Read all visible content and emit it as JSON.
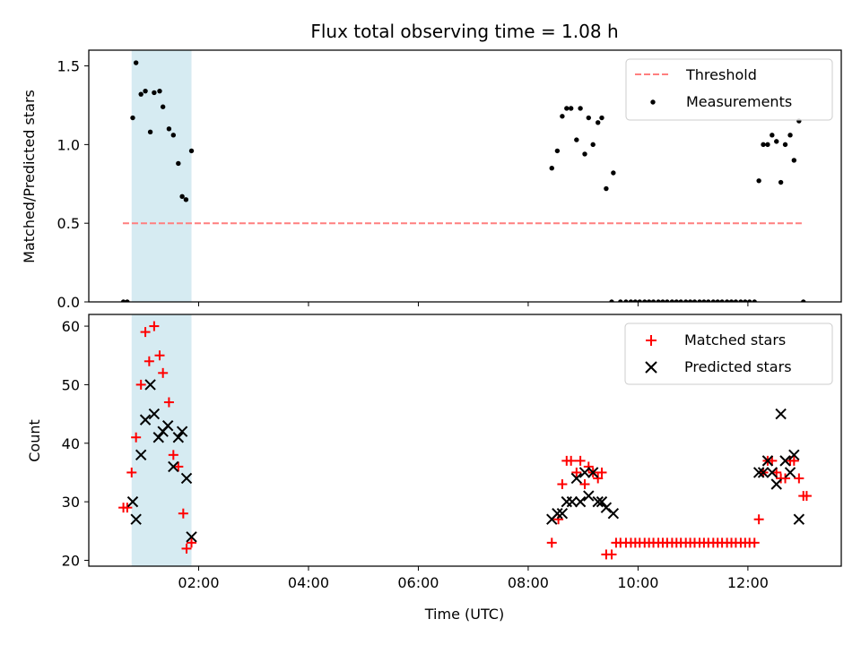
{
  "title": "Flux total observing time = 1.08 h",
  "colors": {
    "threshold": "#ff7f7f",
    "measurement": "#000000",
    "matched": "#ff0000",
    "predicted": "#000000",
    "span": "#add8e6"
  },
  "chart_data": [
    {
      "type": "scatter",
      "panel": "top",
      "ylabel": "Matched/Predicted stars",
      "xlim": [
        0.0,
        13.7
      ],
      "ylim": [
        0.0,
        1.6
      ],
      "yticks": [
        0.0,
        0.5,
        1.0,
        1.5
      ],
      "ytick_labels": [
        "0.0",
        "0.5",
        "1.0",
        "1.5"
      ],
      "xticks": [
        2,
        4,
        6,
        8,
        10,
        12
      ],
      "grid": false,
      "legend_position": "top-right",
      "shaded_span": [
        0.78,
        1.87
      ],
      "threshold": {
        "name": "Threshold",
        "y": 0.5,
        "x_range": [
          0.62,
          12.98
        ],
        "style": "dashed"
      },
      "series": [
        {
          "name": "Measurements",
          "points": [
            [
              0.63,
              0.0
            ],
            [
              0.7,
              0.0
            ],
            [
              0.8,
              1.17
            ],
            [
              0.86,
              1.52
            ],
            [
              0.95,
              1.32
            ],
            [
              1.03,
              1.34
            ],
            [
              1.12,
              1.08
            ],
            [
              1.19,
              1.33
            ],
            [
              1.29,
              1.34
            ],
            [
              1.35,
              1.24
            ],
            [
              1.46,
              1.1
            ],
            [
              1.54,
              1.06
            ],
            [
              1.63,
              0.88
            ],
            [
              1.7,
              0.67
            ],
            [
              1.77,
              0.65
            ],
            [
              1.87,
              0.96
            ],
            [
              8.43,
              0.85
            ],
            [
              8.53,
              0.96
            ],
            [
              8.62,
              1.18
            ],
            [
              8.7,
              1.23
            ],
            [
              8.78,
              1.23
            ],
            [
              8.88,
              1.03
            ],
            [
              8.95,
              1.23
            ],
            [
              9.03,
              0.94
            ],
            [
              9.1,
              1.17
            ],
            [
              9.18,
              1.0
            ],
            [
              9.27,
              1.14
            ],
            [
              9.34,
              1.17
            ],
            [
              9.42,
              0.72
            ],
            [
              9.55,
              0.82
            ],
            [
              9.52,
              0.0
            ],
            [
              9.68,
              0.0
            ],
            [
              9.78,
              0.0
            ],
            [
              9.87,
              0.0
            ],
            [
              9.95,
              0.0
            ],
            [
              10.03,
              0.0
            ],
            [
              10.12,
              0.0
            ],
            [
              10.2,
              0.0
            ],
            [
              10.28,
              0.0
            ],
            [
              10.37,
              0.0
            ],
            [
              10.45,
              0.0
            ],
            [
              10.53,
              0.0
            ],
            [
              10.62,
              0.0
            ],
            [
              10.7,
              0.0
            ],
            [
              10.78,
              0.0
            ],
            [
              10.87,
              0.0
            ],
            [
              10.95,
              0.0
            ],
            [
              11.03,
              0.0
            ],
            [
              11.12,
              0.0
            ],
            [
              11.2,
              0.0
            ],
            [
              11.28,
              0.0
            ],
            [
              11.37,
              0.0
            ],
            [
              11.45,
              0.0
            ],
            [
              11.53,
              0.0
            ],
            [
              11.62,
              0.0
            ],
            [
              11.7,
              0.0
            ],
            [
              11.78,
              0.0
            ],
            [
              11.87,
              0.0
            ],
            [
              11.95,
              0.0
            ],
            [
              12.03,
              0.0
            ],
            [
              12.12,
              0.0
            ],
            [
              12.2,
              0.77
            ],
            [
              12.28,
              1.0
            ],
            [
              12.36,
              1.0
            ],
            [
              12.44,
              1.06
            ],
            [
              12.52,
              1.02
            ],
            [
              12.6,
              0.76
            ],
            [
              12.68,
              1.0
            ],
            [
              12.77,
              1.06
            ],
            [
              12.84,
              0.9
            ],
            [
              12.93,
              1.15
            ],
            [
              13.01,
              0.0
            ]
          ]
        }
      ]
    },
    {
      "type": "scatter",
      "panel": "bottom",
      "xlabel": "Time (UTC)",
      "ylabel": "Count",
      "xlim": [
        0.0,
        13.7
      ],
      "ylim": [
        19.0,
        62.0
      ],
      "yticks": [
        20,
        30,
        40,
        50,
        60
      ],
      "ytick_labels": [
        "20",
        "30",
        "40",
        "50",
        "60"
      ],
      "xticks": [
        2,
        4,
        6,
        8,
        10,
        12
      ],
      "xtick_labels": [
        "02:00",
        "04:00",
        "06:00",
        "08:00",
        "10:00",
        "12:00"
      ],
      "grid": false,
      "legend_position": "top-right",
      "shaded_span": [
        0.78,
        1.87
      ],
      "series": [
        {
          "name": "Matched stars",
          "marker": "plus",
          "points": [
            [
              0.63,
              29
            ],
            [
              0.7,
              29
            ],
            [
              0.78,
              35
            ],
            [
              0.86,
              41
            ],
            [
              0.95,
              50
            ],
            [
              1.03,
              59
            ],
            [
              1.1,
              54
            ],
            [
              1.19,
              60
            ],
            [
              1.29,
              55
            ],
            [
              1.35,
              52
            ],
            [
              1.46,
              47
            ],
            [
              1.54,
              38
            ],
            [
              1.63,
              36
            ],
            [
              1.72,
              28
            ],
            [
              1.78,
              22
            ],
            [
              1.87,
              23
            ],
            [
              8.43,
              23
            ],
            [
              8.55,
              27
            ],
            [
              8.62,
              33
            ],
            [
              8.7,
              37
            ],
            [
              8.78,
              37
            ],
            [
              8.88,
              35
            ],
            [
              8.95,
              37
            ],
            [
              9.03,
              33
            ],
            [
              9.1,
              36
            ],
            [
              9.18,
              35
            ],
            [
              9.27,
              34
            ],
            [
              9.34,
              35
            ],
            [
              9.42,
              21
            ],
            [
              9.52,
              21
            ],
            [
              9.6,
              23
            ],
            [
              9.68,
              23
            ],
            [
              9.78,
              23
            ],
            [
              9.87,
              23
            ],
            [
              9.95,
              23
            ],
            [
              10.03,
              23
            ],
            [
              10.12,
              23
            ],
            [
              10.2,
              23
            ],
            [
              10.28,
              23
            ],
            [
              10.37,
              23
            ],
            [
              10.45,
              23
            ],
            [
              10.53,
              23
            ],
            [
              10.62,
              23
            ],
            [
              10.7,
              23
            ],
            [
              10.78,
              23
            ],
            [
              10.87,
              23
            ],
            [
              10.95,
              23
            ],
            [
              11.03,
              23
            ],
            [
              11.12,
              23
            ],
            [
              11.2,
              23
            ],
            [
              11.28,
              23
            ],
            [
              11.37,
              23
            ],
            [
              11.45,
              23
            ],
            [
              11.53,
              23
            ],
            [
              11.62,
              23
            ],
            [
              11.7,
              23
            ],
            [
              11.78,
              23
            ],
            [
              11.87,
              23
            ],
            [
              11.95,
              23
            ],
            [
              12.03,
              23
            ],
            [
              12.12,
              23
            ],
            [
              12.2,
              27
            ],
            [
              12.28,
              35
            ],
            [
              12.36,
              37
            ],
            [
              12.44,
              37
            ],
            [
              12.52,
              35
            ],
            [
              12.6,
              34
            ],
            [
              12.68,
              34
            ],
            [
              12.77,
              37
            ],
            [
              12.84,
              37
            ],
            [
              12.93,
              34
            ],
            [
              13.01,
              31
            ],
            [
              13.07,
              31
            ]
          ]
        },
        {
          "name": "Predicted stars",
          "marker": "x",
          "points": [
            [
              0.8,
              30
            ],
            [
              0.86,
              27
            ],
            [
              0.95,
              38
            ],
            [
              1.03,
              44
            ],
            [
              1.12,
              50
            ],
            [
              1.19,
              45
            ],
            [
              1.27,
              41
            ],
            [
              1.35,
              42
            ],
            [
              1.44,
              43
            ],
            [
              1.54,
              36
            ],
            [
              1.63,
              41
            ],
            [
              1.7,
              42
            ],
            [
              1.78,
              34
            ],
            [
              1.87,
              24
            ],
            [
              8.43,
              27
            ],
            [
              8.53,
              28
            ],
            [
              8.62,
              28
            ],
            [
              8.7,
              30
            ],
            [
              8.8,
              30
            ],
            [
              8.88,
              34
            ],
            [
              8.95,
              30
            ],
            [
              9.03,
              35
            ],
            [
              9.1,
              31
            ],
            [
              9.18,
              35
            ],
            [
              9.27,
              30
            ],
            [
              9.34,
              30
            ],
            [
              9.42,
              29
            ],
            [
              9.55,
              28
            ],
            [
              12.2,
              35
            ],
            [
              12.28,
              35
            ],
            [
              12.36,
              37
            ],
            [
              12.44,
              35
            ],
            [
              12.52,
              33
            ],
            [
              12.6,
              45
            ],
            [
              12.68,
              37
            ],
            [
              12.77,
              35
            ],
            [
              12.84,
              38
            ],
            [
              12.93,
              27
            ]
          ]
        }
      ]
    }
  ]
}
